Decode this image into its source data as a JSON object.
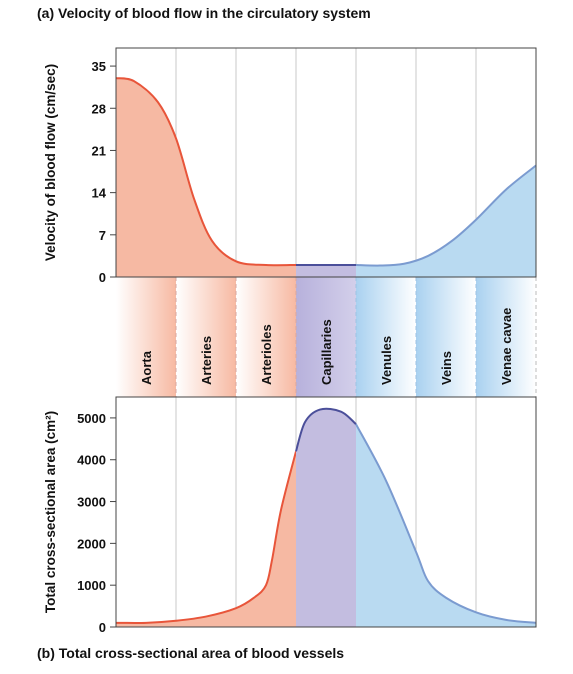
{
  "captions": {
    "a": "(a) Velocity of blood flow in the circulatory system",
    "b": "(b) Total cross-sectional area of blood vessels"
  },
  "colors": {
    "arterial_fill": "#f6b9a3",
    "arterial_line": "#e8553a",
    "capillary_fill": "#c3bde0",
    "capillary_line": "#4b4f9a",
    "venous_fill": "#b9daf1",
    "venous_line": "#7b9bd0"
  },
  "chart_data": [
    {
      "type": "area",
      "title": "(a) Velocity of blood flow in the circulatory system",
      "ylabel": "Velocity of blood flow (cm/sec)",
      "ylim": [
        0,
        38
      ],
      "yticks": [
        0,
        7,
        14,
        21,
        28,
        35
      ],
      "categories": [
        "Aorta",
        "Arteries",
        "Arterioles",
        "Capillaries",
        "Venules",
        "Veins",
        "Venae cavae"
      ],
      "grid": "vertical",
      "series": [
        {
          "segment": "arterial",
          "x": [
            0,
            0.3,
            0.7,
            1.0,
            1.3,
            1.6,
            2.0,
            2.5,
            3.0
          ],
          "values": [
            33,
            32.5,
            29,
            23,
            13,
            6,
            2.6,
            2.0,
            2.0
          ]
        },
        {
          "segment": "capillary",
          "x": [
            3.0,
            4.0
          ],
          "values": [
            2.0,
            2.0
          ]
        },
        {
          "segment": "venous",
          "x": [
            4.0,
            4.4,
            4.8,
            5.2,
            5.6,
            6.0,
            6.5,
            7.0
          ],
          "values": [
            2.0,
            1.9,
            2.2,
            3.5,
            6,
            9.5,
            14.5,
            18.5
          ]
        }
      ]
    },
    {
      "type": "area",
      "title": "(b) Total cross-sectional area of blood vessels",
      "ylabel": "Total cross-sectional area (cm²)",
      "ylim": [
        0,
        5500
      ],
      "yticks": [
        0,
        1000,
        2000,
        3000,
        4000,
        5000
      ],
      "categories": [
        "Aorta",
        "Arteries",
        "Arterioles",
        "Capillaries",
        "Venules",
        "Veins",
        "Venae cavae"
      ],
      "grid": "vertical",
      "series": [
        {
          "segment": "arterial",
          "x": [
            0,
            0.5,
            1.0,
            1.5,
            2.0,
            2.3,
            2.5,
            2.6,
            2.75,
            3.0
          ],
          "values": [
            100,
            100,
            150,
            250,
            450,
            700,
            1000,
            1600,
            2800,
            4200
          ]
        },
        {
          "segment": "capillary",
          "x": [
            3.0,
            3.15,
            3.4,
            3.75,
            4.0
          ],
          "values": [
            4200,
            4900,
            5200,
            5150,
            4850
          ]
        },
        {
          "segment": "venous",
          "x": [
            4.0,
            4.5,
            5.0,
            5.2,
            5.5,
            6.0,
            6.5,
            7.0
          ],
          "values": [
            4850,
            3500,
            1800,
            1100,
            700,
            350,
            170,
            100
          ]
        }
      ]
    }
  ]
}
